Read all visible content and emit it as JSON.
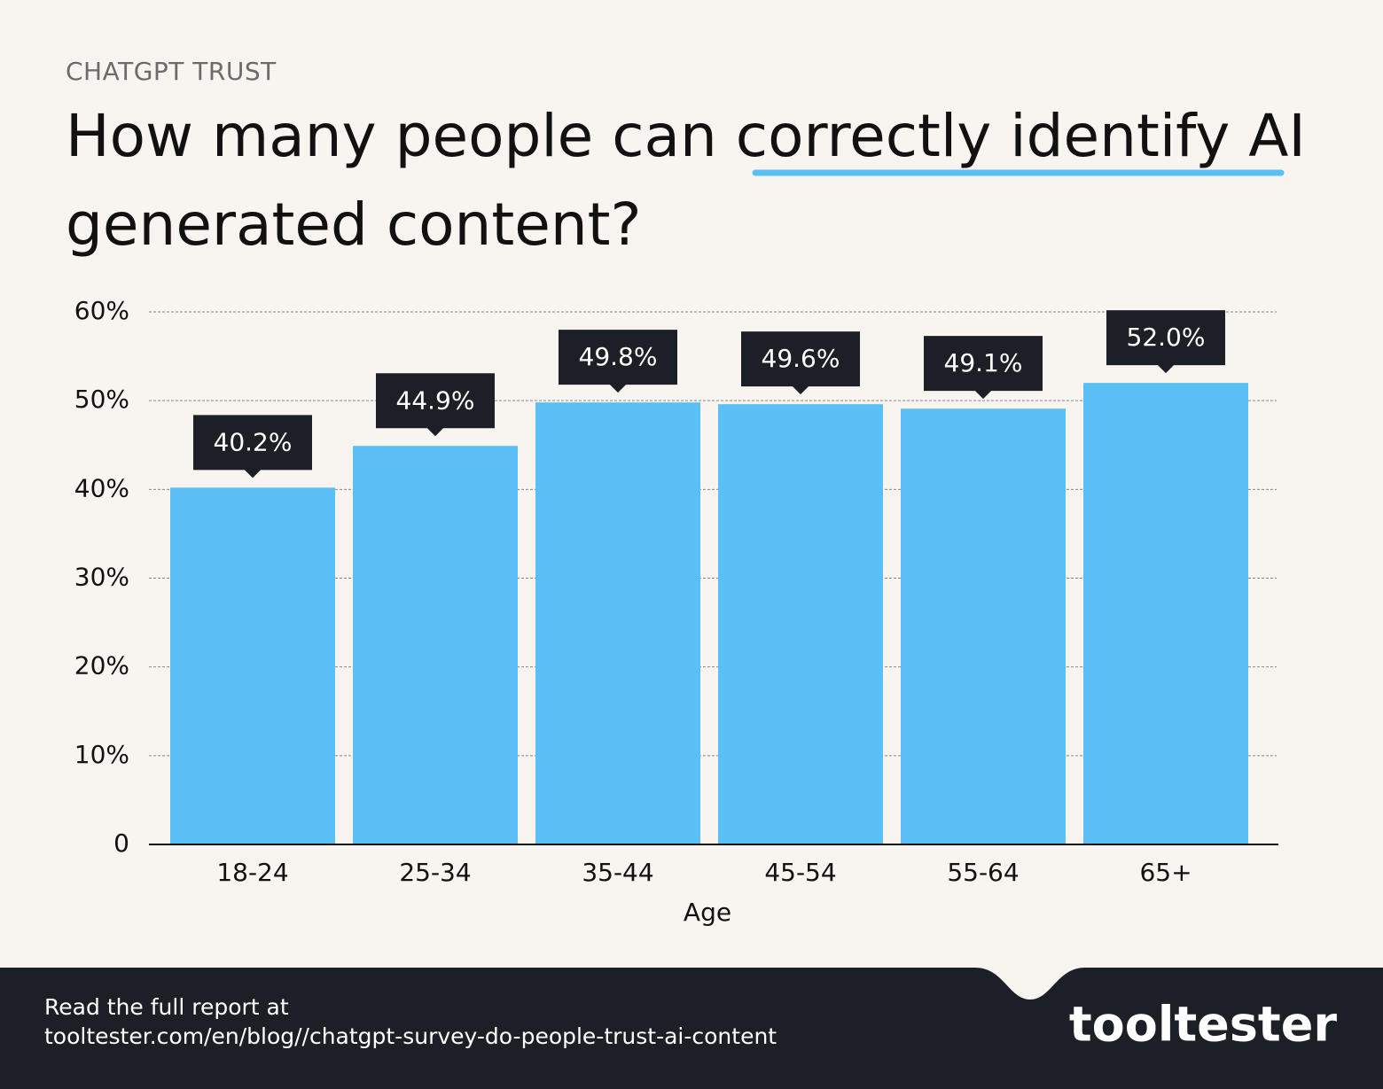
{
  "chart_data": {
    "type": "bar",
    "supertitle": "CHATGPT TRUST",
    "title": "How many people can correctly identify AI generated content?",
    "categories": [
      "18-24",
      "25-34",
      "35-44",
      "45-54",
      "55-64",
      "65+"
    ],
    "values": [
      40.2,
      44.9,
      49.8,
      49.6,
      49.1,
      52.0
    ],
    "value_labels": [
      "40.2%",
      "44.9%",
      "49.8%",
      "49.6%",
      "49.1%",
      "52.0%"
    ],
    "color": "#5bbef5",
    "x_label": "Age",
    "ylim": [
      0,
      60
    ],
    "yticks": [
      0,
      {
        "value": 10,
        "label": "10%"
      },
      {
        "value": 20,
        "label": "20%"
      },
      {
        "value": 30,
        "label": "30%"
      },
      {
        "value": 40,
        "label": "40%"
      },
      {
        "value": 50,
        "label": "50%"
      },
      {
        "value": 60,
        "label": "60%"
      }
    ],
    "grid": true
  },
  "footer": {
    "text": "Read the full report at",
    "url": "tooltester.com/en/blog//chatgpt-survey-do-people-trust-ai-content",
    "logo": "tooltester"
  }
}
